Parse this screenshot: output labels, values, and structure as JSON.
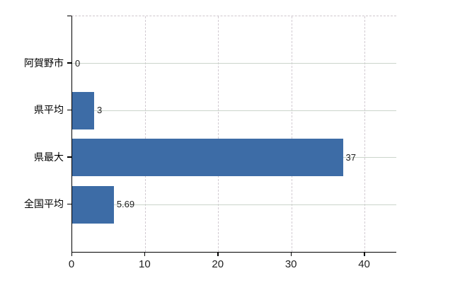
{
  "chart_data": {
    "type": "bar",
    "orientation": "horizontal",
    "title": "",
    "categories": [
      "阿賀野市",
      "県平均",
      "県最大",
      "全国平均"
    ],
    "values": [
      0,
      3,
      37,
      5.69
    ],
    "value_labels": [
      "0",
      "3",
      "37",
      "5.69"
    ],
    "x_ticks": [
      0,
      10,
      20,
      30,
      40
    ],
    "x_tick_labels": [
      "0",
      "10",
      "20",
      "30",
      "40"
    ],
    "xlim": [
      0,
      44.3
    ],
    "grid": "on",
    "legend": "none",
    "colors": {
      "bar": "#3d6ca6",
      "h_gridline": "#cbd5cb",
      "v_gridline": "#d2cbd2",
      "top_border": "#cfc7cd",
      "axis": "#000000",
      "text": "#1f1f1f"
    }
  }
}
